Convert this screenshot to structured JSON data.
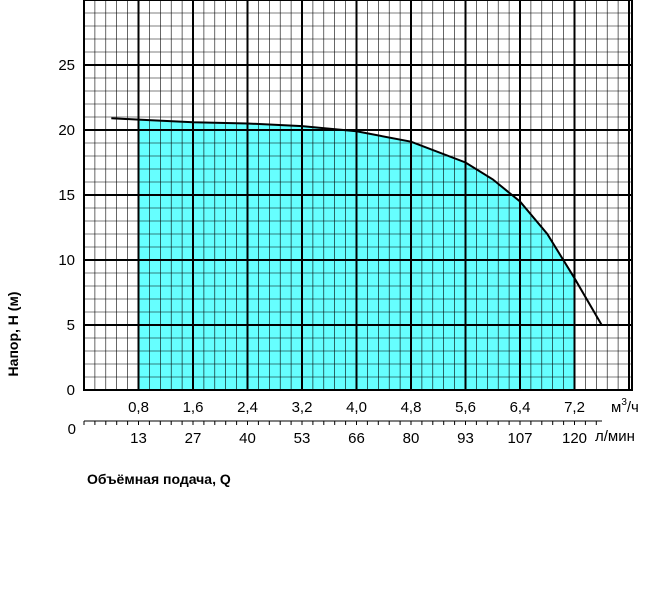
{
  "chart_data": {
    "type": "area",
    "ylabel": "Напор, Н (м)",
    "xlabel": "Объёмная подача, Q",
    "ylim": [
      0,
      30
    ],
    "xlim": [
      0,
      8.4
    ],
    "grid": true,
    "y_ticks": [
      "0",
      "5",
      "10",
      "15",
      "20",
      "25"
    ],
    "x_ticks_primary": [
      "0,8",
      "1,6",
      "2,4",
      "3,2",
      "4,0",
      "4,8",
      "5,6",
      "6,4",
      "7,2"
    ],
    "x_unit_primary": "м³/ч",
    "x_ticks_secondary_origin": "0",
    "x_ticks_secondary": [
      "13",
      "27",
      "40",
      "53",
      "66",
      "80",
      "93",
      "107",
      "120"
    ],
    "x_unit_secondary": "л/мин",
    "colors": {
      "fill": "#66ffff",
      "grid": "#000000",
      "curve": "#000000"
    },
    "series": [
      {
        "x": [
          0.4,
          0.8,
          1.6,
          2.4,
          3.2,
          4.0,
          4.8,
          5.6,
          6.0,
          6.4,
          6.8,
          7.2,
          7.6
        ],
        "y": [
          20.9,
          20.8,
          20.6,
          20.5,
          20.3,
          19.9,
          19.1,
          17.5,
          16.2,
          14.5,
          12.0,
          8.6,
          5.0
        ]
      }
    ],
    "fill_range": [
      0.8,
      7.2
    ]
  }
}
